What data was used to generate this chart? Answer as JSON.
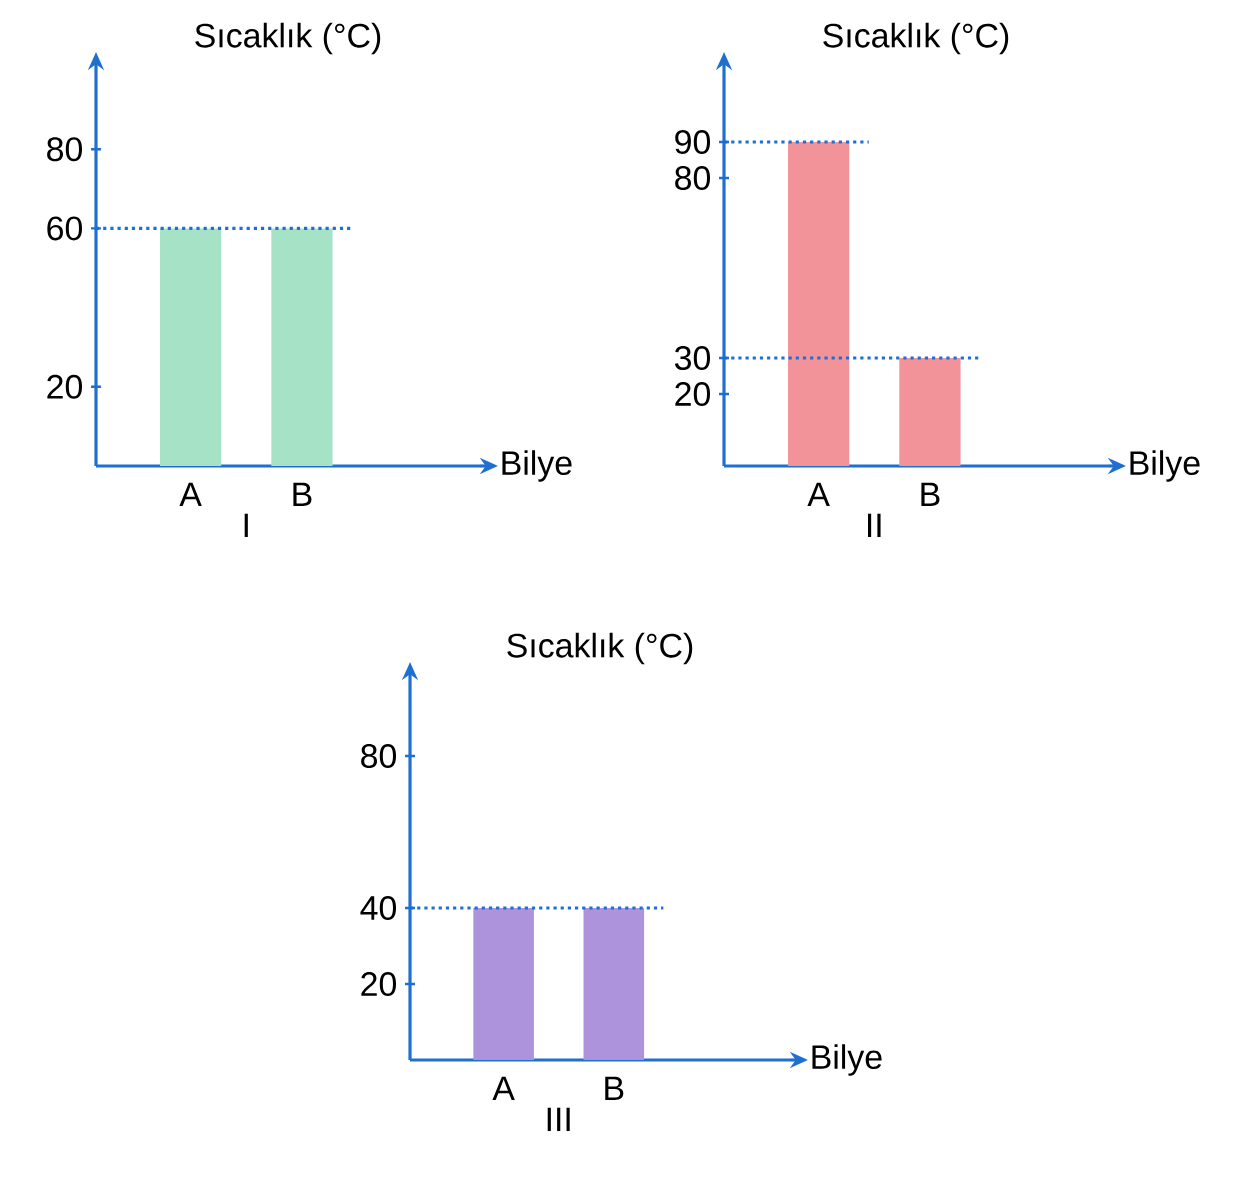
{
  "chart_data": [
    {
      "type": "bar",
      "title": "I",
      "xlabel": "Bilye",
      "ylabel": "Sıcaklık (°C)",
      "categories": [
        "A",
        "B"
      ],
      "series": [
        {
          "color": "#a6e3c6",
          "values": [
            60,
            60
          ]
        }
      ],
      "ylim": [
        0,
        100
      ],
      "yticks": [
        20,
        60,
        80
      ],
      "ref_lines": [
        {
          "axis": "y",
          "value": 60,
          "color": "#1f6fd1",
          "line_style": "dotted"
        }
      ]
    },
    {
      "type": "bar",
      "title": "II",
      "xlabel": "Bilye",
      "ylabel": "Sıcaklık (°C)",
      "categories": [
        "A",
        "B"
      ],
      "series": [
        {
          "color": "#f2939a",
          "values": [
            90,
            30
          ]
        }
      ],
      "ylim": [
        0,
        110
      ],
      "yticks": [
        20,
        30,
        80,
        90
      ],
      "ref_lines": [
        {
          "axis": "y",
          "value": 90,
          "color": "#1f6fd1",
          "line_style": "dotted"
        },
        {
          "axis": "y",
          "value": 30,
          "color": "#1f6fd1",
          "line_style": "dotted"
        }
      ]
    },
    {
      "type": "bar",
      "title": "III",
      "xlabel": "Bilye",
      "ylabel": "Sıcaklık (°C)",
      "categories": [
        "A",
        "B"
      ],
      "series": [
        {
          "color": "#ad93dc",
          "values": [
            40,
            40
          ]
        }
      ],
      "ylim": [
        0,
        100
      ],
      "yticks": [
        20,
        40,
        80
      ],
      "ref_lines": [
        {
          "axis": "y",
          "value": 40,
          "color": "#1f6fd1",
          "line_style": "dotted"
        }
      ]
    }
  ]
}
